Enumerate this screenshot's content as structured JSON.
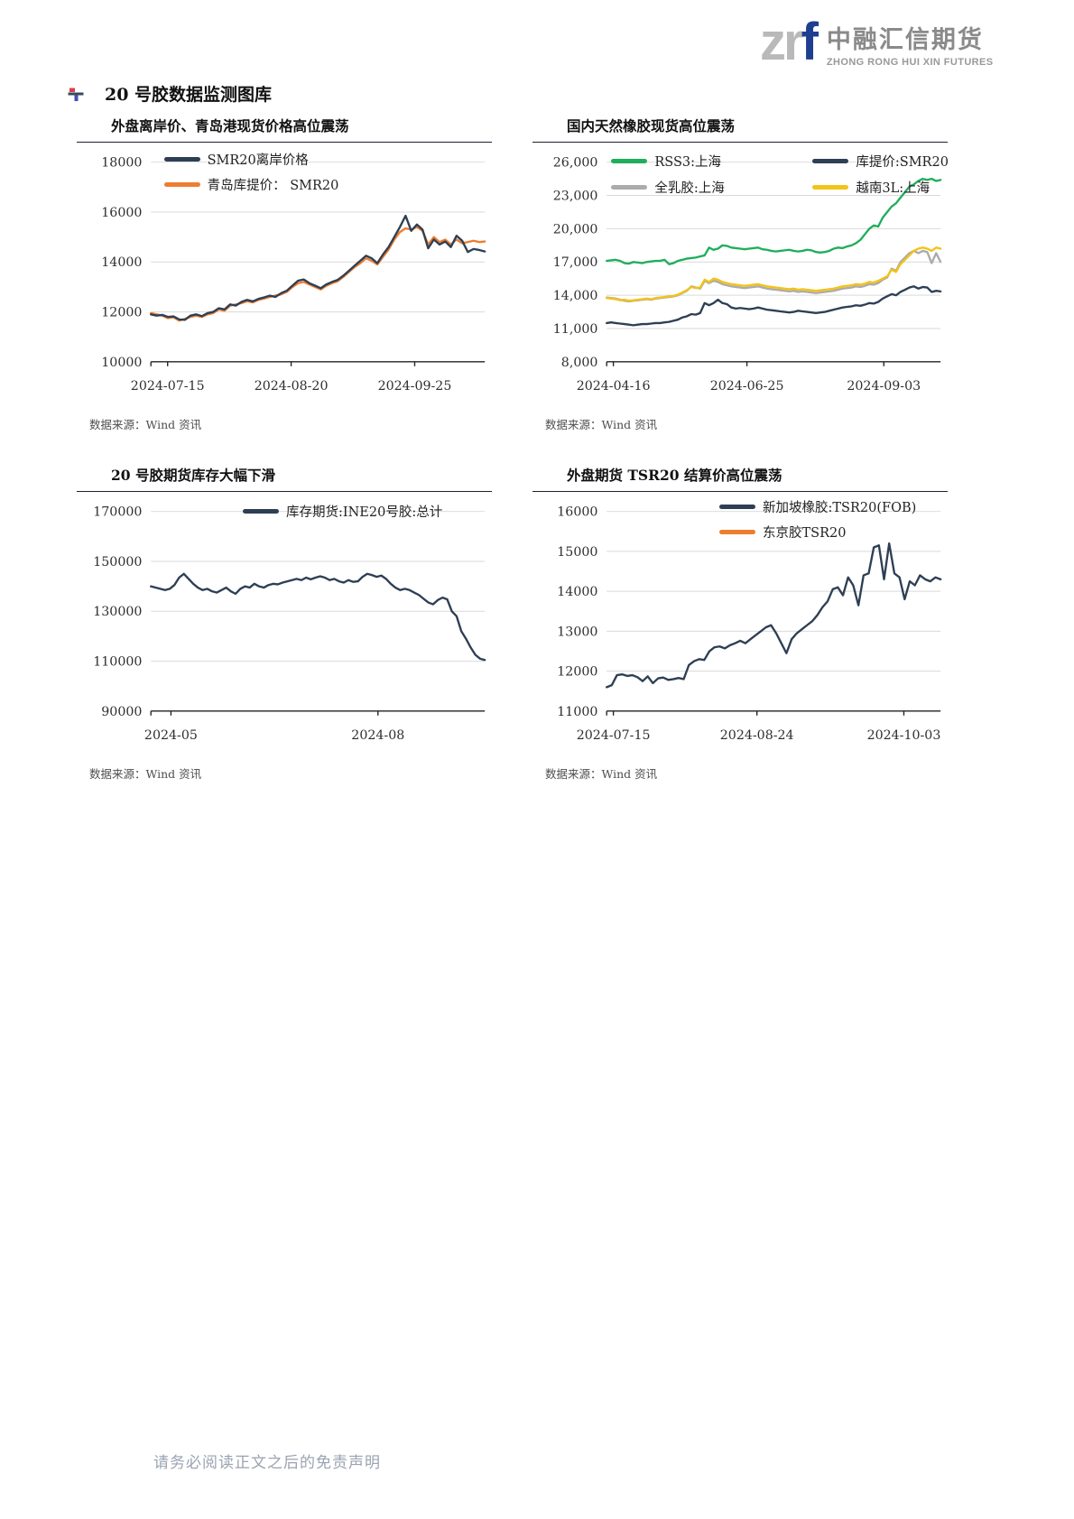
{
  "logo": {
    "zr": "zr",
    "f": "f",
    "cn": "中融汇信期货",
    "en": "ZHONG RONG HUI XIN FUTURES"
  },
  "section": {
    "title": "20 号胶数据监测图库"
  },
  "footer": {
    "disclaimer": "请务必阅读正文之后的免责声明"
  },
  "charts": [
    {
      "title": "外盘离岸价、青岛港现货价格高位震荡",
      "source": "数据来源：Wind 资讯",
      "legend": [
        {
          "label": "SMR20离岸价格",
          "color": "#2e3f54"
        },
        {
          "label": "青岛库提价： SMR20",
          "color": "#ed7d31"
        }
      ],
      "chart_data": {
        "type": "line",
        "ylim": [
          10000,
          18000
        ],
        "yticks": [
          {
            "label": "10000",
            "value": 10000
          },
          {
            "label": "12000",
            "value": 12000
          },
          {
            "label": "14000",
            "value": 14000
          },
          {
            "label": "16000",
            "value": 16000
          },
          {
            "label": "18000",
            "value": 18000
          }
        ],
        "xticks": [
          {
            "label": "2024-07-15",
            "pos": 0.05
          },
          {
            "label": "2024-08-20",
            "pos": 0.42
          },
          {
            "label": "2024-09-25",
            "pos": 0.79
          }
        ],
        "series": [
          {
            "name": "青岛库提价： SMR20",
            "color": "#ed7d31",
            "values": [
              11950,
              11900,
              11850,
              11750,
              11780,
              11650,
              11720,
              11800,
              11850,
              11800,
              11900,
              11950,
              12100,
              12050,
              12250,
              12300,
              12350,
              12430,
              12380,
              12480,
              12530,
              12600,
              12650,
              12700,
              12800,
              13000,
              13150,
              13200,
              13100,
              13000,
              12900,
              13050,
              13150,
              13230,
              13400,
              13600,
              13800,
              13950,
              14150,
              14050,
              13900,
              14200,
              14500,
              14900,
              15200,
              15350,
              15300,
              15400,
              15250,
              14700,
              15000,
              14800,
              14900,
              14700,
              14900,
              14750,
              14800,
              14850,
              14800,
              14820
            ]
          },
          {
            "name": "SMR20离岸价格",
            "color": "#2e3f54",
            "values": [
              11900,
              11850,
              11880,
              11800,
              11820,
              11700,
              11680,
              11850,
              11900,
              11830,
              11950,
              12000,
              12150,
              12100,
              12300,
              12250,
              12400,
              12480,
              12420,
              12520,
              12580,
              12650,
              12600,
              12750,
              12850,
              13050,
              13250,
              13300,
              13150,
              13050,
              12950,
              13100,
              13200,
              13280,
              13450,
              13650,
              13850,
              14050,
              14250,
              14150,
              13950,
              14300,
              14600,
              15000,
              15400,
              15850,
              15250,
              15500,
              15300,
              14550,
              14900,
              14700,
              14820,
              14600,
              15050,
              14850,
              14400,
              14520,
              14480,
              14420
            ]
          }
        ]
      }
    },
    {
      "title": "国内天然橡胶现货高位震荡",
      "source": "数据来源：Wind 资讯",
      "legend": [
        {
          "label": "RSS3:上海",
          "color": "#1fae5c"
        },
        {
          "label": "库提价:SMR20",
          "color": "#2e3f54"
        },
        {
          "label": "全乳胶:上海",
          "color": "#ababab"
        },
        {
          "label": "越南3L:上海",
          "color": "#f3c317"
        }
      ],
      "chart_data": {
        "type": "line",
        "ylim": [
          8000,
          26000
        ],
        "yticks": [
          {
            "label": "8,000",
            "value": 8000
          },
          {
            "label": "11,000",
            "value": 11000
          },
          {
            "label": "14,000",
            "value": 14000
          },
          {
            "label": "17,000",
            "value": 17000
          },
          {
            "label": "20,000",
            "value": 20000
          },
          {
            "label": "23,000",
            "value": 23000
          },
          {
            "label": "26,000",
            "value": 26000
          }
        ],
        "xticks": [
          {
            "label": "2024-04-16",
            "pos": 0.02
          },
          {
            "label": "2024-06-25",
            "pos": 0.42
          },
          {
            "label": "2024-09-03",
            "pos": 0.83
          }
        ],
        "series": [
          {
            "name": "全乳胶:上海",
            "color": "#ababab",
            "values": [
              13800,
              13750,
              13700,
              13600,
              13500,
              13450,
              13500,
              13550,
              13600,
              13650,
              13600,
              13700,
              13750,
              13800,
              13850,
              13900,
              14000,
              14200,
              14400,
              14800,
              14700,
              14600,
              15300,
              15100,
              15300,
              15200,
              15000,
              14900,
              14800,
              14750,
              14700,
              14650,
              14700,
              14750,
              14800,
              14700,
              14600,
              14550,
              14500,
              14450,
              14400,
              14350,
              14400,
              14300,
              14350,
              14300,
              14250,
              14200,
              14250,
              14300,
              14350,
              14400,
              14500,
              14600,
              14650,
              14700,
              14800,
              14750,
              14850,
              15000,
              14950,
              15100,
              15400,
              15600,
              16400,
              16200,
              17000,
              17400,
              17800,
              18000,
              17800,
              18000,
              17900,
              16900,
              17800,
              17000
            ]
          },
          {
            "name": "越南3L:上海",
            "color": "#f3c317",
            "values": [
              13750,
              13700,
              13650,
              13550,
              13600,
              13500,
              13550,
              13600,
              13650,
              13700,
              13650,
              13750,
              13800,
              13850,
              13900,
              13950,
              14050,
              14250,
              14450,
              14750,
              14650,
              14700,
              15400,
              15200,
              15500,
              15400,
              15200,
              15100,
              15000,
              14950,
              14900,
              14850,
              14900,
              14950,
              15000,
              14900,
              14800,
              14750,
              14700,
              14650,
              14600,
              14550,
              14600,
              14500,
              14550,
              14500,
              14450,
              14400,
              14450,
              14500,
              14550,
              14600,
              14700,
              14800,
              14850,
              14900,
              15000,
              14950,
              15050,
              15200,
              15150,
              15300,
              15500,
              15700,
              16300,
              16100,
              16800,
              17200,
              17600,
              18000,
              18200,
              18300,
              18200,
              18000,
              18300,
              18200
            ]
          },
          {
            "name": "库提价:SMR20",
            "color": "#2e3f54",
            "values": [
              11500,
              11550,
              11500,
              11450,
              11400,
              11350,
              11300,
              11350,
              11400,
              11400,
              11450,
              11500,
              11500,
              11550,
              11600,
              11700,
              11800,
              12000,
              12100,
              12300,
              12250,
              12400,
              13300,
              13100,
              13300,
              13600,
              13300,
              13200,
              12900,
              12800,
              12850,
              12800,
              12750,
              12800,
              12900,
              12800,
              12700,
              12650,
              12600,
              12550,
              12500,
              12450,
              12500,
              12600,
              12550,
              12500,
              12450,
              12400,
              12450,
              12500,
              12600,
              12700,
              12800,
              12900,
              12950,
              13000,
              13100,
              13050,
              13150,
              13300,
              13250,
              13400,
              13700,
              13900,
              14100,
              14000,
              14300,
              14500,
              14700,
              14800,
              14600,
              14750,
              14700,
              14300,
              14400,
              14350
            ]
          },
          {
            "name": "RSS3:上海",
            "color": "#1fae5c",
            "values": [
              17100,
              17150,
              17200,
              17100,
              16900,
              16850,
              17000,
              16950,
              16900,
              17000,
              17050,
              17100,
              17100,
              17200,
              16800,
              16900,
              17100,
              17200,
              17300,
              17350,
              17400,
              17500,
              17600,
              18300,
              18100,
              18200,
              18500,
              18450,
              18300,
              18250,
              18200,
              18150,
              18200,
              18250,
              18300,
              18150,
              18100,
              18000,
              17950,
              18000,
              18050,
              18100,
              18000,
              17950,
              18000,
              18100,
              18050,
              17900,
              17850,
              17900,
              18000,
              18200,
              18300,
              18250,
              18400,
              18500,
              18700,
              19000,
              19500,
              20000,
              20300,
              20200,
              21000,
              21500,
              22000,
              22300,
              22800,
              23300,
              23800,
              24000,
              24300,
              24500,
              24400,
              24500,
              24300,
              24400
            ]
          }
        ]
      }
    },
    {
      "title": "20 号胶期货库存大幅下滑",
      "source": "数据来源：Wind 资讯",
      "legend": [
        {
          "label": "库存期货:INE20号胶:总计",
          "color": "#2e3f54"
        }
      ],
      "chart_data": {
        "type": "line",
        "ylim": [
          90000,
          170000
        ],
        "yticks": [
          {
            "label": "90000",
            "value": 90000
          },
          {
            "label": "110000",
            "value": 110000
          },
          {
            "label": "130000",
            "value": 130000
          },
          {
            "label": "150000",
            "value": 150000
          },
          {
            "label": "170000",
            "value": 170000
          }
        ],
        "xticks": [
          {
            "label": "2024-05",
            "pos": 0.06
          },
          {
            "label": "2024-08",
            "pos": 0.68
          }
        ],
        "series": [
          {
            "name": "库存期货:INE20号胶:总计",
            "color": "#2e3f54",
            "values": [
              140000,
              139500,
              139000,
              138500,
              139000,
              140500,
              143500,
              145000,
              143000,
              141000,
              139500,
              138500,
              139000,
              138000,
              137500,
              138500,
              139500,
              138000,
              137000,
              139000,
              140000,
              139500,
              141000,
              140000,
              139500,
              140500,
              141000,
              140800,
              141500,
              142000,
              142500,
              143000,
              142500,
              143500,
              142800,
              143500,
              144000,
              143500,
              142500,
              143000,
              142000,
              141500,
              142500,
              141800,
              142000,
              143800,
              145000,
              144500,
              143800,
              144300,
              143000,
              141000,
              139500,
              138500,
              139000,
              138500,
              137500,
              136500,
              135000,
              133500,
              132800,
              134500,
              135500,
              134800,
              130000,
              128000,
              122000,
              119000,
              115500,
              112500,
              111000,
              110500
            ]
          }
        ]
      }
    },
    {
      "title": "外盘期货 TSR20 结算价高位震荡",
      "source": "数据来源：Wind 资讯",
      "legend": [
        {
          "label": "新加坡橡胶:TSR20(FOB)",
          "color": "#2e3f54"
        },
        {
          "label": "东京胶TSR20",
          "color": "#ed7d31"
        }
      ],
      "chart_data": {
        "type": "line",
        "ylim": [
          11000,
          16000
        ],
        "yticks": [
          {
            "label": "11000",
            "value": 11000
          },
          {
            "label": "12000",
            "value": 12000
          },
          {
            "label": "13000",
            "value": 13000
          },
          {
            "label": "14000",
            "value": 14000
          },
          {
            "label": "15000",
            "value": 15000
          },
          {
            "label": "16000",
            "value": 16000
          }
        ],
        "xticks": [
          {
            "label": "2024-07-15",
            "pos": 0.02
          },
          {
            "label": "2024-08-24",
            "pos": 0.45
          },
          {
            "label": "2024-10-03",
            "pos": 0.89
          }
        ],
        "series": [
          {
            "name": "新加坡橡胶:TSR20(FOB)",
            "color": "#2e3f54",
            "values": [
              11600,
              11650,
              11900,
              11920,
              11880,
              11900,
              11850,
              11750,
              11870,
              11700,
              11820,
              11840,
              11780,
              11800,
              11830,
              11800,
              12150,
              12250,
              12300,
              12280,
              12500,
              12600,
              12620,
              12570,
              12650,
              12700,
              12760,
              12700,
              12800,
              12900,
              13000,
              13100,
              13150,
              12950,
              12700,
              12450,
              12800,
              12950,
              13050,
              13150,
              13250,
              13400,
              13600,
              13750,
              14050,
              14100,
              13900,
              14350,
              14150,
              13650,
              14400,
              14450,
              15100,
              15150,
              14300,
              15200,
              14450,
              14350,
              13800,
              14250,
              14150,
              14400,
              14300,
              14250,
              14350,
              14300
            ]
          },
          {
            "name": "东京胶TSR20",
            "color": "#ed7d31",
            "values": []
          }
        ]
      }
    }
  ]
}
